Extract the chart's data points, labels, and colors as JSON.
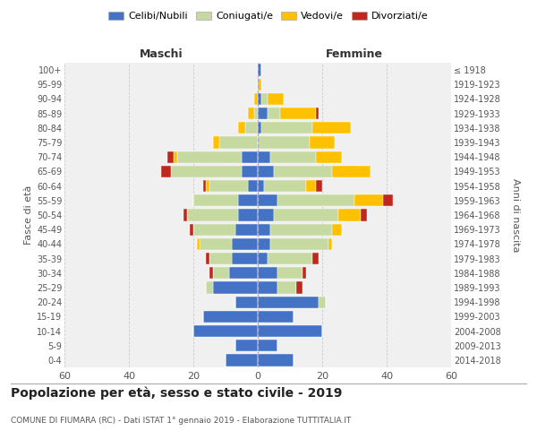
{
  "age_groups": [
    "0-4",
    "5-9",
    "10-14",
    "15-19",
    "20-24",
    "25-29",
    "30-34",
    "35-39",
    "40-44",
    "45-49",
    "50-54",
    "55-59",
    "60-64",
    "65-69",
    "70-74",
    "75-79",
    "80-84",
    "85-89",
    "90-94",
    "95-99",
    "100+"
  ],
  "birth_years": [
    "2014-2018",
    "2009-2013",
    "2004-2008",
    "1999-2003",
    "1994-1998",
    "1989-1993",
    "1984-1988",
    "1979-1983",
    "1974-1978",
    "1969-1973",
    "1964-1968",
    "1959-1963",
    "1954-1958",
    "1949-1953",
    "1944-1948",
    "1939-1943",
    "1934-1938",
    "1929-1933",
    "1924-1928",
    "1919-1923",
    "≤ 1918"
  ],
  "male_celibe": [
    10,
    7,
    20,
    17,
    7,
    14,
    9,
    8,
    8,
    7,
    6,
    6,
    3,
    5,
    5,
    0,
    0,
    0,
    0,
    0,
    0
  ],
  "male_coniugato": [
    0,
    0,
    0,
    0,
    0,
    2,
    5,
    7,
    10,
    13,
    16,
    14,
    12,
    22,
    20,
    12,
    4,
    1,
    0,
    0,
    0
  ],
  "male_vedovo": [
    0,
    0,
    0,
    0,
    0,
    0,
    0,
    0,
    1,
    0,
    0,
    0,
    1,
    0,
    1,
    2,
    2,
    2,
    1,
    0,
    0
  ],
  "male_divorziato": [
    0,
    0,
    0,
    0,
    0,
    0,
    1,
    1,
    0,
    1,
    1,
    0,
    1,
    3,
    2,
    0,
    0,
    0,
    0,
    0,
    0
  ],
  "female_nubile": [
    11,
    6,
    20,
    11,
    19,
    6,
    6,
    3,
    4,
    4,
    5,
    6,
    2,
    5,
    4,
    0,
    1,
    3,
    1,
    0,
    1
  ],
  "female_coniugata": [
    0,
    0,
    0,
    0,
    2,
    6,
    8,
    14,
    18,
    19,
    20,
    24,
    13,
    18,
    14,
    16,
    16,
    4,
    2,
    0,
    0
  ],
  "female_vedova": [
    0,
    0,
    0,
    0,
    0,
    0,
    0,
    0,
    1,
    3,
    7,
    9,
    3,
    12,
    8,
    8,
    12,
    11,
    5,
    1,
    0
  ],
  "female_divorziata": [
    0,
    0,
    0,
    0,
    0,
    2,
    1,
    2,
    0,
    0,
    2,
    3,
    2,
    0,
    0,
    0,
    0,
    1,
    0,
    0,
    0
  ],
  "color_celibe": "#4472c4",
  "color_coniugato": "#c5d9a0",
  "color_vedovo": "#ffc000",
  "color_divorziato": "#c0281e",
  "title": "Popolazione per età, sesso e stato civile - 2019",
  "subtitle": "COMUNE DI FIUMARA (RC) - Dati ISTAT 1° gennaio 2019 - Elaborazione TUTTITALIA.IT",
  "xlabel_left": "Maschi",
  "xlabel_right": "Femmine",
  "ylabel_left": "Fasce di età",
  "ylabel_right": "Anni di nascita",
  "xlim": 60,
  "bg_color": "#f0f0f0",
  "grid_color": "#cccccc"
}
